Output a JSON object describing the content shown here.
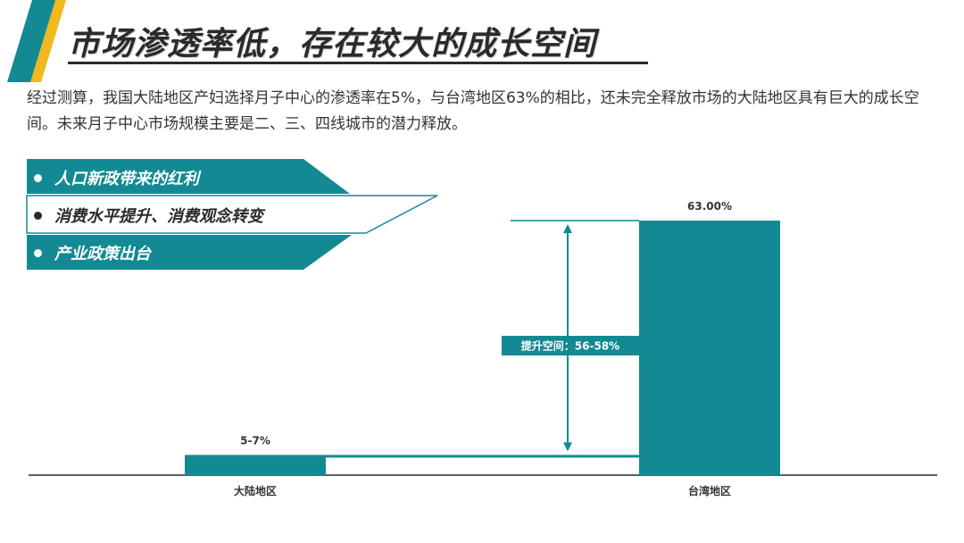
{
  "title": "市场渗透率低，存在较大的成长空间",
  "intro": "经过测算，我国大陆地区产妇选择月子中心的渗透率在5%，与台湾地区63%的相比，还未完全释放市场的大陆地区具有巨大的成长空间。未来月子中心市场规模主要是二、三、四线城市的潜力释放。",
  "drivers": [
    "人口新政带来的红利",
    "消费水平提升、消费观念转变",
    "产业政策出台"
  ],
  "colors": {
    "accent": "#138a93",
    "dark": "#2a2a2a",
    "text": "#333333"
  },
  "chart_data": {
    "type": "bar",
    "categories": [
      "大陆地区",
      "台湾地区"
    ],
    "values": [
      5,
      63
    ],
    "data_labels": [
      "5-7%",
      "63.00%"
    ],
    "ylim": [
      0,
      65
    ],
    "grid": false,
    "annotation": {
      "text": "提升空间：56-58%",
      "from": 5,
      "to": 63
    }
  }
}
